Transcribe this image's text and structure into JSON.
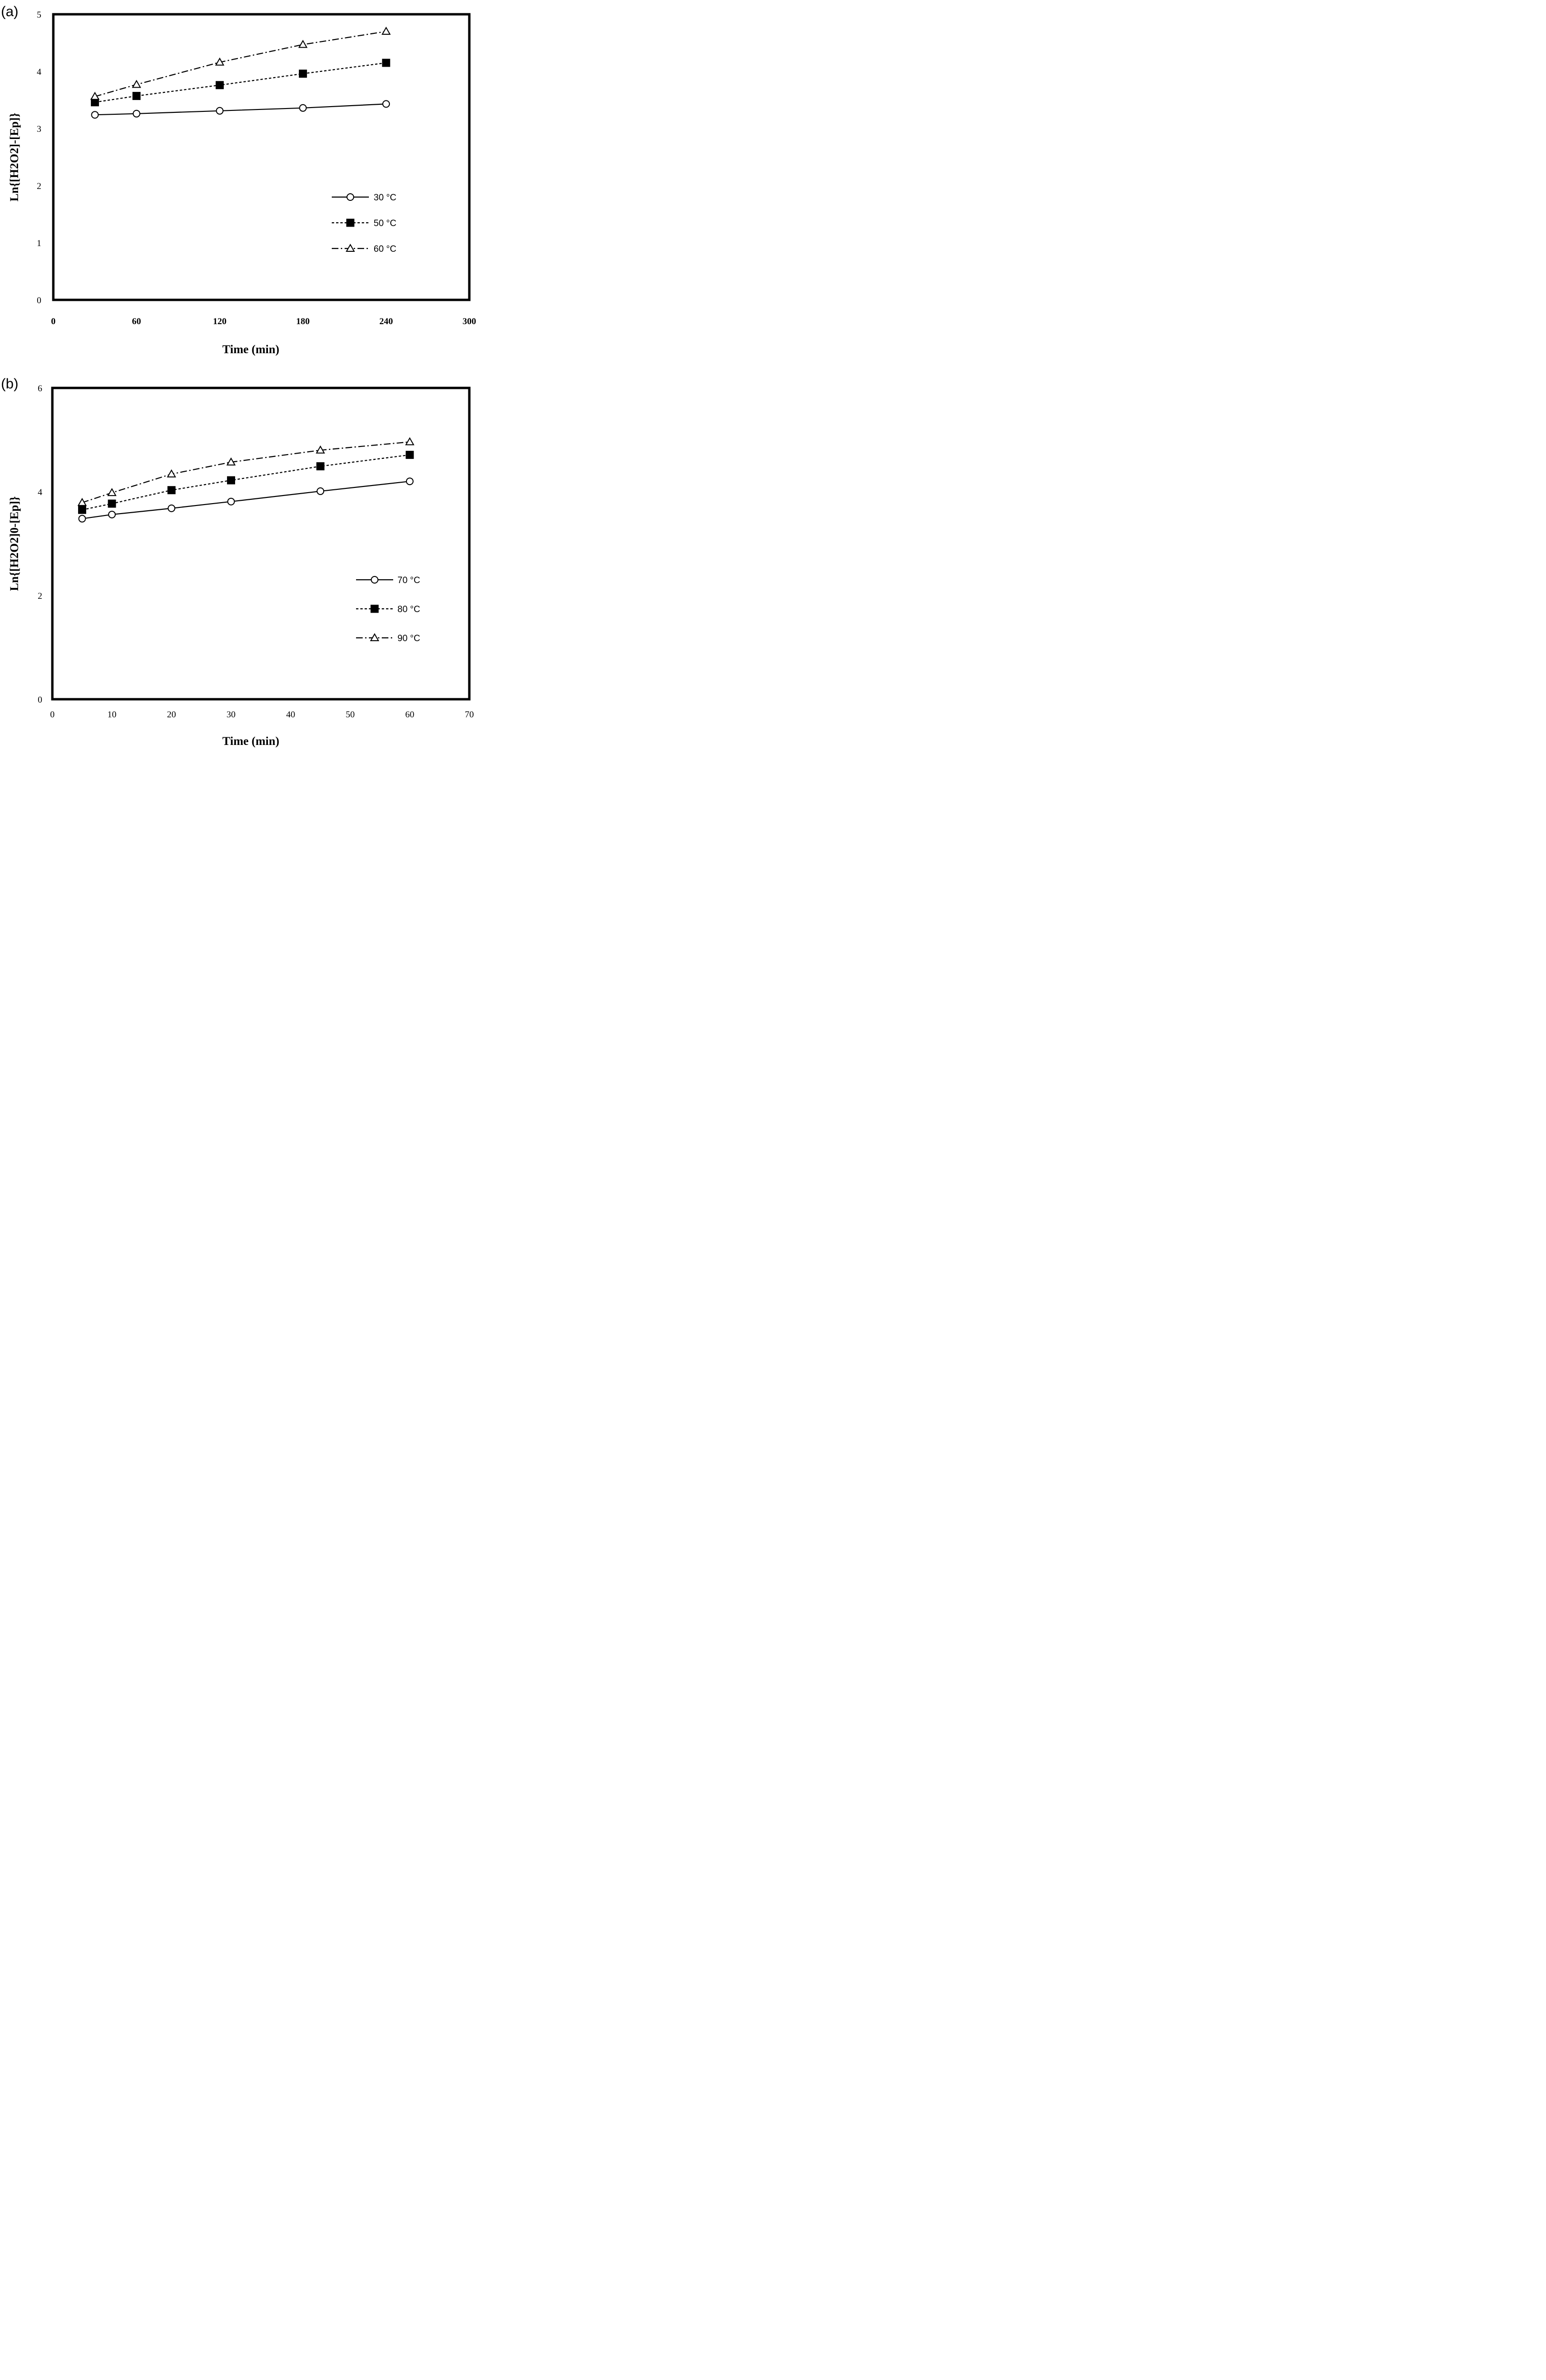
{
  "chart_data": [
    {
      "type": "line",
      "panel_label": "(a)",
      "xlabel": "Time (min)",
      "ylabel": "Ln{[H2O2]-[Ep]}",
      "xlim": [
        0,
        300
      ],
      "ylim": [
        0,
        5
      ],
      "xticks": [
        "0",
        "60",
        "120",
        "180",
        "240",
        "300"
      ],
      "yticks": [
        "0",
        "1",
        "2",
        "3",
        "4",
        "5"
      ],
      "grid": false,
      "legend_position": "lower-right",
      "series": [
        {
          "name": "30 °C",
          "marker": "open-circle",
          "line": "solid",
          "x": [
            30,
            60,
            120,
            180,
            240
          ],
          "y": [
            3.24,
            3.26,
            3.31,
            3.36,
            3.43
          ]
        },
        {
          "name": "50 °C",
          "marker": "filled-square",
          "line": "dashed",
          "x": [
            30,
            60,
            120,
            180,
            240
          ],
          "y": [
            3.46,
            3.57,
            3.76,
            3.96,
            4.15
          ]
        },
        {
          "name": "60 °C",
          "marker": "open-triangle",
          "line": "dash-dot",
          "x": [
            30,
            60,
            120,
            180,
            240
          ],
          "y": [
            3.56,
            3.77,
            4.16,
            4.47,
            4.7
          ]
        }
      ]
    },
    {
      "type": "line",
      "panel_label": "(b)",
      "xlabel": "Time (min)",
      "ylabel": "Ln{[H2O2]0-[Ep]}",
      "xlim": [
        0,
        70
      ],
      "ylim": [
        0,
        6
      ],
      "xticks": [
        "0",
        "10",
        "20",
        "30",
        "40",
        "50",
        "60",
        "70"
      ],
      "yticks": [
        "0",
        "2",
        "4",
        "6"
      ],
      "grid": false,
      "legend_position": "lower-right",
      "series": [
        {
          "name": "70 °C",
          "marker": "open-circle",
          "line": "solid",
          "x": [
            5,
            10,
            20,
            30,
            45,
            60
          ],
          "y": [
            3.48,
            3.56,
            3.68,
            3.81,
            4.01,
            4.2
          ]
        },
        {
          "name": "80 °C",
          "marker": "filled-square",
          "line": "dashed",
          "x": [
            5,
            10,
            20,
            30,
            45,
            60
          ],
          "y": [
            3.65,
            3.77,
            4.03,
            4.22,
            4.49,
            4.71
          ]
        },
        {
          "name": "90 °C",
          "marker": "open-triangle",
          "line": "dash-dot",
          "x": [
            5,
            10,
            20,
            30,
            45,
            60
          ],
          "y": [
            3.79,
            3.98,
            4.34,
            4.57,
            4.8,
            4.96
          ]
        }
      ]
    }
  ]
}
